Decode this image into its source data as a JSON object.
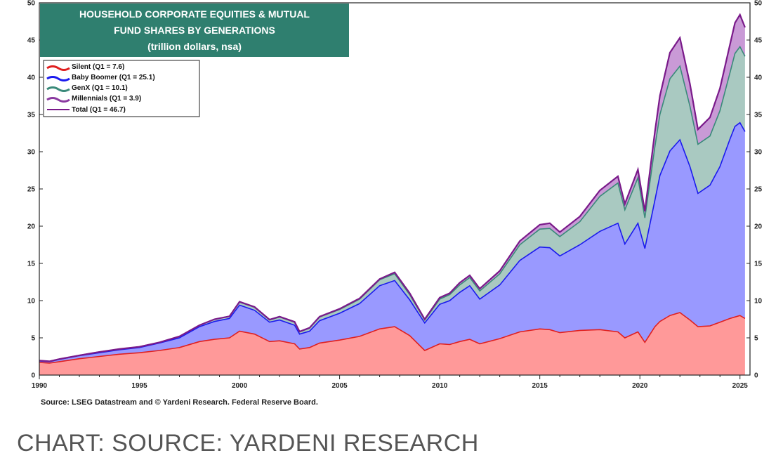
{
  "caption": "CHART: SOURCE: YARDENI RESEARCH",
  "chart_data": {
    "type": "area",
    "title_lines": [
      "HOUSEHOLD CORPORATE EQUITIES & MUTUAL",
      "FUND SHARES BY GENERATIONS",
      "(trillion dollars, nsa)"
    ],
    "source": "Source: LSEG Datastream and © Yardeni Research. Federal Reserve Board.",
    "ylim": [
      0,
      50
    ],
    "xlim": [
      1990,
      2025.5
    ],
    "y_ticks": [
      0,
      5,
      10,
      15,
      20,
      25,
      30,
      35,
      40,
      45,
      50
    ],
    "x_ticks": [
      1990,
      1995,
      2000,
      2005,
      2010,
      2015,
      2020,
      2025
    ],
    "grid": false,
    "legend_position": "top-left",
    "colors": {
      "silent_fill": "#ff9999",
      "silent_line": "#e02020",
      "boomer_fill": "#9999ff",
      "boomer_line": "#1a1aee",
      "genx_fill": "#a9c9c1",
      "genx_line": "#3a8a7a",
      "millennial_fill": "#c99ad6",
      "millennial_line": "#8a3aa0",
      "total_line": "#7a1a8a",
      "title_bg": "#2f7f6f"
    },
    "x": [
      1990,
      1990.5,
      1991,
      1992,
      1993,
      1994,
      1995,
      1996,
      1997,
      1998,
      1998.75,
      1999.5,
      2000,
      2000.75,
      2001.5,
      2002,
      2002.75,
      2003,
      2003.5,
      2004,
      2005,
      2006,
      2007,
      2007.75,
      2008.5,
      2009.25,
      2010,
      2010.5,
      2011,
      2011.5,
      2012,
      2013,
      2014,
      2015,
      2015.5,
      2016,
      2017,
      2018,
      2018.9,
      2019.25,
      2019.9,
      2020.25,
      2020.75,
      2021,
      2021.5,
      2022,
      2022.5,
      2022.9,
      2023.5,
      2024,
      2024.5,
      2024.75,
      2025,
      2025.25
    ],
    "series": [
      {
        "name": "Silent (Q1 = 7.6)",
        "values": [
          1.7,
          1.6,
          1.8,
          2.2,
          2.5,
          2.8,
          3.0,
          3.3,
          3.7,
          4.5,
          4.8,
          5.0,
          5.9,
          5.5,
          4.5,
          4.6,
          4.2,
          3.5,
          3.7,
          4.3,
          4.7,
          5.2,
          6.2,
          6.5,
          5.3,
          3.3,
          4.2,
          4.1,
          4.5,
          4.8,
          4.2,
          4.9,
          5.8,
          6.2,
          6.1,
          5.7,
          6.0,
          6.1,
          5.8,
          5.0,
          5.8,
          4.4,
          6.5,
          7.2,
          8.0,
          8.4,
          7.4,
          6.5,
          6.6,
          7.1,
          7.6,
          7.8,
          8.0,
          7.6
        ]
      },
      {
        "name": "Baby Boomer (Q1 = 25.1)",
        "values": [
          0.2,
          0.2,
          0.3,
          0.4,
          0.5,
          0.6,
          0.7,
          1.0,
          1.3,
          2.0,
          2.4,
          2.6,
          3.5,
          3.2,
          2.6,
          2.8,
          2.5,
          2.0,
          2.2,
          3.0,
          3.6,
          4.4,
          5.8,
          6.2,
          4.8,
          3.7,
          5.3,
          5.9,
          6.6,
          7.2,
          6.0,
          7.2,
          9.6,
          11.0,
          11.0,
          10.3,
          11.5,
          13.2,
          14.6,
          12.6,
          14.6,
          12.6,
          17.0,
          19.6,
          22.1,
          23.2,
          20.6,
          17.9,
          18.9,
          20.9,
          24.1,
          25.6,
          25.9,
          25.1
        ]
      },
      {
        "name": "GenX (Q1 = 10.1)",
        "values": [
          0.05,
          0.05,
          0.05,
          0.05,
          0.1,
          0.1,
          0.1,
          0.1,
          0.2,
          0.2,
          0.3,
          0.3,
          0.4,
          0.4,
          0.3,
          0.4,
          0.4,
          0.3,
          0.4,
          0.5,
          0.5,
          0.6,
          0.8,
          0.9,
          0.7,
          0.4,
          0.7,
          0.8,
          1.0,
          1.1,
          1.1,
          1.5,
          2.1,
          2.4,
          2.6,
          2.6,
          3.1,
          4.7,
          5.4,
          4.6,
          6.1,
          4.1,
          7.2,
          8.2,
          9.7,
          9.9,
          8.1,
          6.6,
          6.6,
          7.5,
          8.9,
          9.8,
          10.2,
          10.1
        ]
      },
      {
        "name": "Millennials (Q1 = 3.9)",
        "values": [
          0.0,
          0.0,
          0.0,
          0.0,
          0.0,
          0.0,
          0.0,
          0.0,
          0.0,
          0.0,
          0.0,
          0.0,
          0.05,
          0.05,
          0.05,
          0.05,
          0.05,
          0.05,
          0.05,
          0.05,
          0.1,
          0.1,
          0.1,
          0.2,
          0.2,
          0.1,
          0.2,
          0.2,
          0.3,
          0.3,
          0.3,
          0.4,
          0.5,
          0.6,
          0.7,
          0.6,
          0.7,
          0.8,
          0.9,
          0.8,
          1.1,
          0.9,
          2.0,
          2.5,
          3.5,
          3.8,
          3.0,
          2.0,
          2.5,
          3.0,
          3.8,
          4.1,
          4.3,
          3.9
        ]
      }
    ],
    "total": {
      "name": "Total (Q1 = 46.7)",
      "values": [
        1.95,
        1.85,
        2.15,
        2.65,
        3.1,
        3.5,
        3.8,
        4.4,
        5.2,
        6.7,
        7.5,
        7.9,
        9.85,
        9.15,
        7.45,
        7.85,
        7.15,
        5.85,
        6.35,
        7.85,
        8.9,
        10.3,
        12.9,
        13.8,
        11.0,
        7.5,
        10.4,
        11.0,
        12.4,
        13.4,
        11.6,
        14.0,
        18.0,
        20.2,
        20.4,
        19.2,
        21.3,
        24.8,
        26.7,
        23.0,
        27.6,
        22.0,
        32.7,
        37.5,
        43.3,
        45.3,
        39.1,
        33.0,
        34.6,
        38.5,
        44.4,
        47.3,
        48.4,
        46.7
      ]
    }
  }
}
